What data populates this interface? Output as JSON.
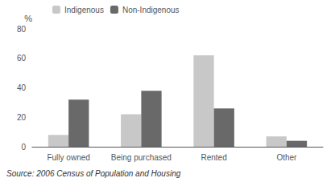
{
  "chart_data": {
    "type": "bar",
    "ylabel": "%",
    "annotation": "Source: 2006 Census of Population and Housing",
    "categories": [
      "Fully owned",
      "Being purchased",
      "Rented",
      "Other"
    ],
    "series": [
      {
        "name": "Indigenous",
        "color": "#c8c8c8",
        "values": [
          8,
          22,
          62,
          7
        ]
      },
      {
        "name": "Non-Indigenous",
        "color": "#696969",
        "values": [
          32,
          38,
          26,
          4
        ]
      }
    ],
    "ylim": [
      0,
      80
    ],
    "yticks": [
      0,
      20,
      40,
      60,
      80
    ],
    "grid": false,
    "legend": "upper left"
  }
}
